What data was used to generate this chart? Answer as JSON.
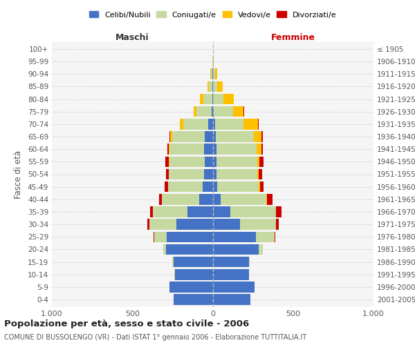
{
  "age_groups": [
    "0-4",
    "5-9",
    "10-14",
    "15-19",
    "20-24",
    "25-29",
    "30-34",
    "35-39",
    "40-44",
    "45-49",
    "50-54",
    "55-59",
    "60-64",
    "65-69",
    "70-74",
    "75-79",
    "80-84",
    "85-89",
    "90-94",
    "95-99",
    "100+"
  ],
  "birth_years": [
    "2001-2005",
    "1996-2000",
    "1991-1995",
    "1986-1990",
    "1981-1985",
    "1976-1980",
    "1971-1975",
    "1966-1970",
    "1961-1965",
    "1956-1960",
    "1951-1955",
    "1946-1950",
    "1941-1945",
    "1936-1940",
    "1931-1935",
    "1926-1930",
    "1921-1925",
    "1916-1920",
    "1911-1915",
    "1906-1910",
    "≤ 1905"
  ],
  "colors": {
    "celibi": "#4472c4",
    "coniugati": "#c5d9a0",
    "vedovi": "#ffc000",
    "divorziati": "#cc0000"
  },
  "maschi": {
    "celibi": [
      245,
      270,
      235,
      245,
      290,
      285,
      225,
      155,
      85,
      62,
      52,
      50,
      52,
      48,
      28,
      8,
      4,
      3,
      2,
      0,
      0
    ],
    "coniugati": [
      0,
      0,
      2,
      5,
      18,
      80,
      170,
      215,
      230,
      215,
      220,
      220,
      215,
      205,
      155,
      95,
      55,
      20,
      10,
      2,
      0
    ],
    "vedovi": [
      0,
      0,
      0,
      0,
      0,
      0,
      0,
      0,
      0,
      2,
      3,
      5,
      8,
      10,
      20,
      15,
      20,
      10,
      5,
      0,
      0
    ],
    "divorziati": [
      0,
      0,
      0,
      0,
      0,
      3,
      10,
      20,
      18,
      18,
      15,
      18,
      5,
      5,
      3,
      2,
      0,
      0,
      0,
      0,
      0
    ]
  },
  "femmine": {
    "celibi": [
      235,
      260,
      225,
      225,
      285,
      270,
      170,
      110,
      50,
      28,
      22,
      22,
      22,
      18,
      13,
      6,
      2,
      2,
      1,
      0,
      0
    ],
    "coniugati": [
      0,
      0,
      2,
      5,
      25,
      115,
      225,
      285,
      285,
      260,
      255,
      255,
      250,
      240,
      180,
      120,
      65,
      25,
      12,
      2,
      0
    ],
    "vedovi": [
      0,
      0,
      0,
      0,
      0,
      0,
      0,
      0,
      3,
      5,
      10,
      15,
      30,
      45,
      90,
      65,
      65,
      35,
      15,
      3,
      1
    ],
    "divorziati": [
      0,
      0,
      0,
      0,
      0,
      5,
      15,
      35,
      35,
      25,
      22,
      22,
      10,
      8,
      5,
      3,
      0,
      0,
      0,
      0,
      0
    ]
  },
  "title": "Popolazione per età, sesso e stato civile - 2006",
  "subtitle": "COMUNE DI BUSSOLENGO (VR) - Dati ISTAT 1° gennaio 2006 - Elaborazione TUTTITALIA.IT",
  "ylabel_left": "Fasce di età",
  "xlabel_maschi": "Maschi",
  "xlabel_femmine": "Femmine",
  "xlim": 1000,
  "legend_labels": [
    "Celibi/Nubili",
    "Coniugati/e",
    "Vedovi/e",
    "Divorziati/e"
  ],
  "xtick_labels": [
    "1.000",
    "500",
    "0",
    "500",
    "1.000"
  ],
  "bg_color": "#f5f5f5",
  "label_color_maschi": "#333333",
  "label_color_femmine": "#cc0000"
}
